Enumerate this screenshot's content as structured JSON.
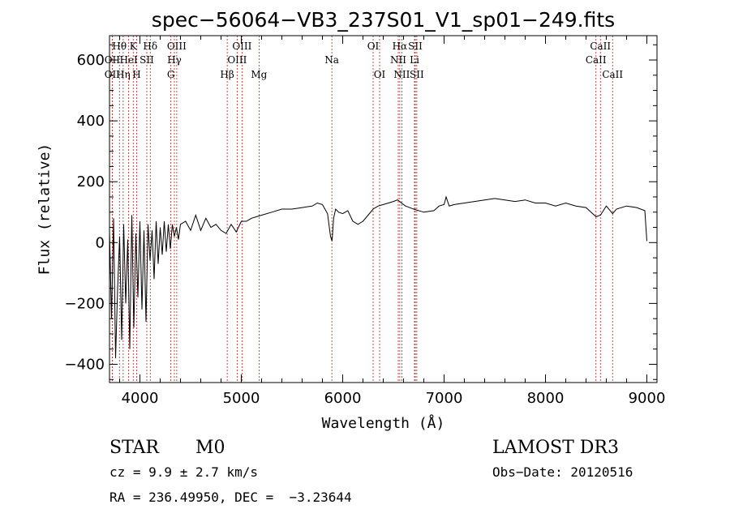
{
  "chart_data": {
    "type": "line",
    "title": "spec−56064−VB3_237S01_V1_sp01−249.fits",
    "xlabel": "Wavelength (Å)",
    "ylabel": "Flux (relative)",
    "xlim": [
      3700,
      9100
    ],
    "ylim": [
      -460,
      680
    ],
    "x_ticks": [
      4000,
      5000,
      6000,
      7000,
      8000,
      9000
    ],
    "x_tick_labels": [
      "4000",
      "5000",
      "6000",
      "7000",
      "8000",
      "9000"
    ],
    "y_ticks": [
      -400,
      -200,
      0,
      200,
      400,
      600
    ],
    "y_tick_labels": [
      "−400",
      "−200",
      "0",
      "200",
      "400",
      "600"
    ],
    "grid": false,
    "series": [
      {
        "name": "spectrum",
        "x": [
          3700,
          3720,
          3740,
          3760,
          3780,
          3800,
          3820,
          3840,
          3860,
          3880,
          3900,
          3920,
          3940,
          3960,
          3980,
          4000,
          4020,
          4040,
          4060,
          4080,
          4100,
          4120,
          4140,
          4160,
          4180,
          4200,
          4220,
          4240,
          4260,
          4280,
          4300,
          4320,
          4340,
          4360,
          4380,
          4400,
          4450,
          4500,
          4550,
          4600,
          4650,
          4700,
          4750,
          4800,
          4850,
          4900,
          4950,
          5000,
          5050,
          5100,
          5150,
          5200,
          5300,
          5400,
          5500,
          5600,
          5700,
          5750,
          5800,
          5850,
          5880,
          5895,
          5910,
          5930,
          5960,
          6000,
          6050,
          6100,
          6150,
          6200,
          6250,
          6300,
          6350,
          6400,
          6450,
          6500,
          6540,
          6563,
          6580,
          6620,
          6700,
          6800,
          6900,
          6950,
          7000,
          7020,
          7050,
          7100,
          7200,
          7300,
          7400,
          7500,
          7600,
          7700,
          7800,
          7900,
          8000,
          8100,
          8200,
          8300,
          8400,
          8498,
          8542,
          8600,
          8662,
          8700,
          8800,
          8900,
          8980,
          9000
        ],
        "y": [
          40,
          -250,
          80,
          -380,
          -150,
          20,
          -320,
          60,
          -200,
          10,
          -350,
          90,
          -280,
          30,
          -180,
          70,
          -220,
          40,
          -260,
          60,
          -60,
          40,
          -120,
          70,
          -70,
          50,
          -40,
          70,
          -30,
          60,
          -20,
          60,
          20,
          50,
          10,
          60,
          70,
          40,
          90,
          40,
          80,
          50,
          60,
          40,
          30,
          60,
          35,
          70,
          70,
          80,
          85,
          90,
          100,
          110,
          110,
          115,
          120,
          130,
          125,
          95,
          20,
          5,
          80,
          110,
          100,
          95,
          105,
          70,
          60,
          70,
          90,
          110,
          120,
          125,
          130,
          135,
          140,
          135,
          130,
          120,
          110,
          100,
          105,
          120,
          125,
          150,
          120,
          125,
          130,
          135,
          140,
          145,
          140,
          135,
          140,
          130,
          130,
          120,
          130,
          120,
          115,
          85,
          90,
          120,
          95,
          110,
          120,
          115,
          105,
          5
        ]
      }
    ],
    "spectral_lines": [
      {
        "label": "Hθ",
        "x": 3798,
        "row": 0
      },
      {
        "label": "OII",
        "x": 3727,
        "row": 1
      },
      {
        "label": "HeI",
        "x": 3889,
        "row": 1
      },
      {
        "label": "OII",
        "x": 3727,
        "row": 2
      },
      {
        "label": "Hη",
        "x": 3835,
        "row": 2
      },
      {
        "label": "K",
        "x": 3934,
        "row": 0
      },
      {
        "label": "SII",
        "x": 4068,
        "row": 1
      },
      {
        "label": "H",
        "x": 3968,
        "row": 2
      },
      {
        "label": "Hδ",
        "x": 4102,
        "row": 0
      },
      {
        "label": "OIII",
        "x": 4363,
        "row": 0
      },
      {
        "label": "Hγ",
        "x": 4340,
        "row": 1
      },
      {
        "label": "G",
        "x": 4305,
        "row": 2
      },
      {
        "label": "OIII",
        "x": 5007,
        "row": 0
      },
      {
        "label": "OIII",
        "x": 4959,
        "row": 1
      },
      {
        "label": "Hβ",
        "x": 4861,
        "row": 2
      },
      {
        "label": "Mg",
        "x": 5175,
        "row": 2
      },
      {
        "label": "Na",
        "x": 5893,
        "row": 1
      },
      {
        "label": "OI",
        "x": 6300,
        "row": 0
      },
      {
        "label": "OI",
        "x": 6364,
        "row": 2
      },
      {
        "label": "Hα",
        "x": 6563,
        "row": 0
      },
      {
        "label": "SII",
        "x": 6716,
        "row": 0
      },
      {
        "label": "NII",
        "x": 6548,
        "row": 1
      },
      {
        "label": "Li",
        "x": 6708,
        "row": 1
      },
      {
        "label": "NII",
        "x": 6583,
        "row": 2
      },
      {
        "label": "SII",
        "x": 6731,
        "row": 2
      },
      {
        "label": "CaII",
        "x": 8542,
        "row": 0
      },
      {
        "label": "CaII",
        "x": 8498,
        "row": 1
      },
      {
        "label": "CaII",
        "x": 8662,
        "row": 2
      }
    ]
  },
  "info": {
    "class_label": "STAR",
    "subclass_label": "M0",
    "survey": "LAMOST DR3",
    "cz": "cz = 9.9 ± 2.7 km/s",
    "obs_date": "Obs−Date: 20120516",
    "radec": "RA = 236.49950, DEC =  −3.23644"
  }
}
